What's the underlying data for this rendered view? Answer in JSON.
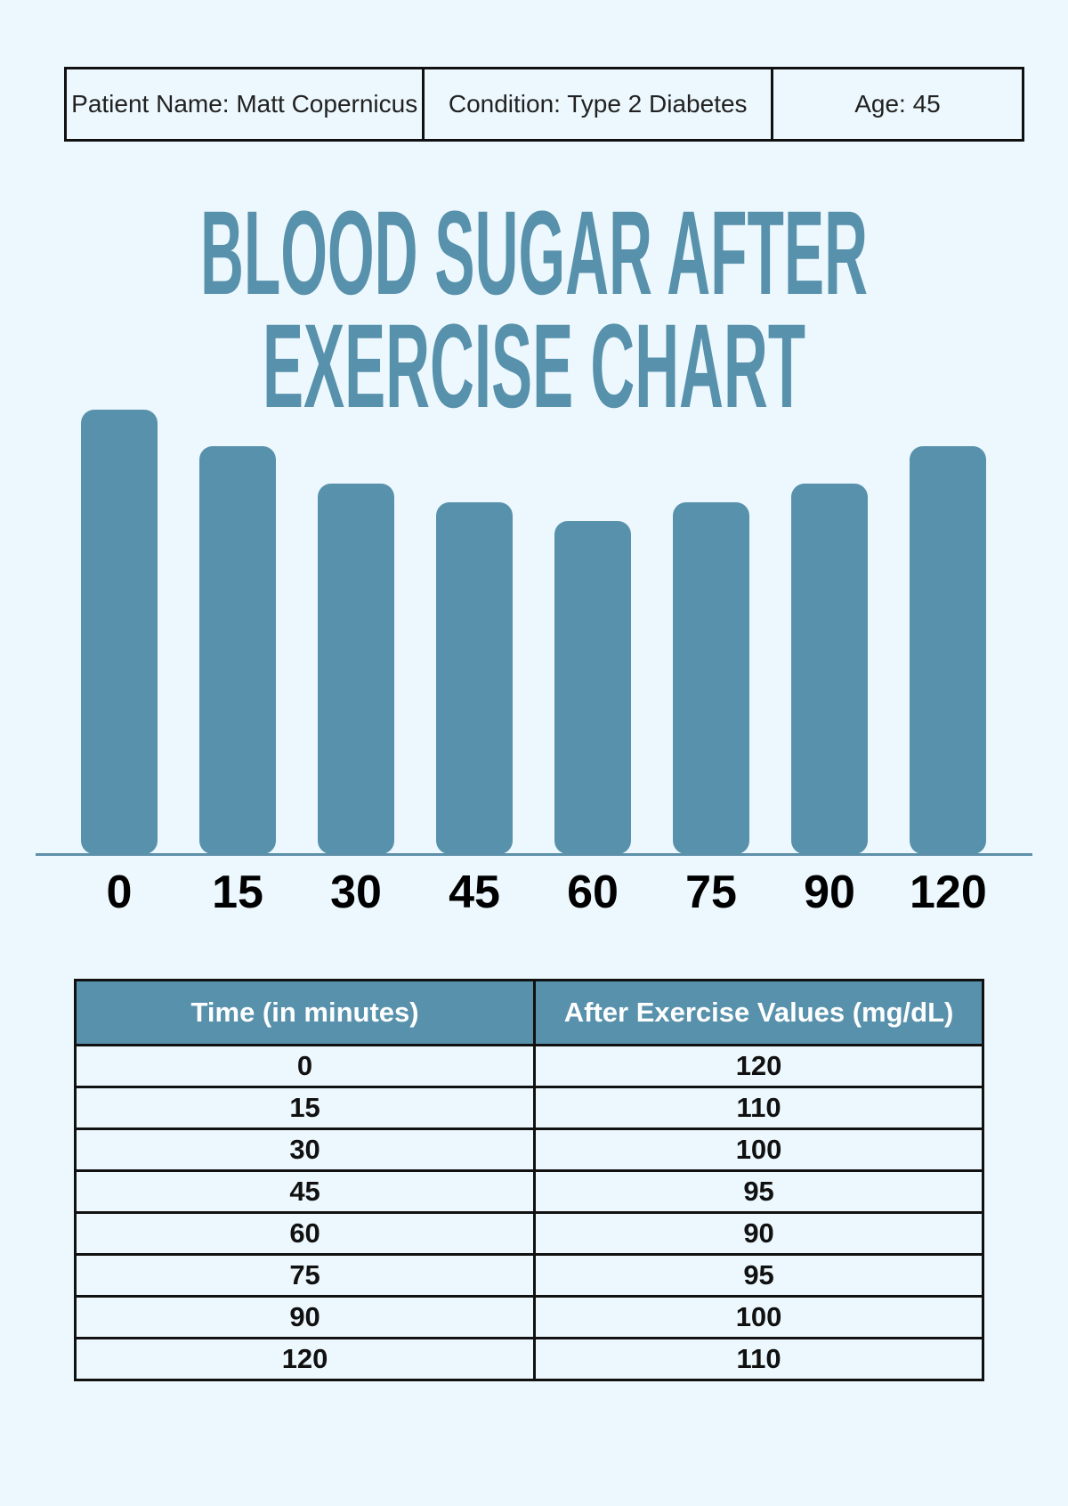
{
  "page": {
    "background": "#ecf8fd",
    "accent": "#5891ac",
    "border_color": "#111111"
  },
  "patient_info": {
    "fields": [
      {
        "label": "Patient Name: Matt Copernicus"
      },
      {
        "label": "Condition: Type 2 Diabetes"
      },
      {
        "label": "Age: 45"
      }
    ]
  },
  "title": {
    "line1": "BLOOD SUGAR AFTER",
    "line2": "EXERCISE CHART",
    "color": "#5891ac"
  },
  "chart_data": {
    "type": "bar",
    "title": "Blood Sugar After Exercise Chart",
    "categories": [
      "0",
      "15",
      "30",
      "45",
      "60",
      "75",
      "90",
      "120"
    ],
    "values": [
      120,
      110,
      100,
      95,
      90,
      95,
      100,
      110
    ],
    "series_name": "After Exercise Values (mg/dL)",
    "xlabel": "Time (in minutes)",
    "ylabel": "",
    "ylim": [
      0,
      127
    ],
    "bar_color": "#5891ac",
    "grid": false,
    "y_axis_labels_shown": false,
    "value_labels_shown": false,
    "baseline_shown": true
  },
  "table": {
    "headers": [
      "Time (in minutes)",
      "After Exercise Values (mg/dL)"
    ],
    "rows": [
      [
        "0",
        "120"
      ],
      [
        "15",
        "110"
      ],
      [
        "30",
        "100"
      ],
      [
        "45",
        "95"
      ],
      [
        "60",
        "90"
      ],
      [
        "75",
        "95"
      ],
      [
        "90",
        "100"
      ],
      [
        "120",
        "110"
      ]
    ],
    "header_bg": "#5891ac",
    "header_text_color": "#ffffff"
  }
}
